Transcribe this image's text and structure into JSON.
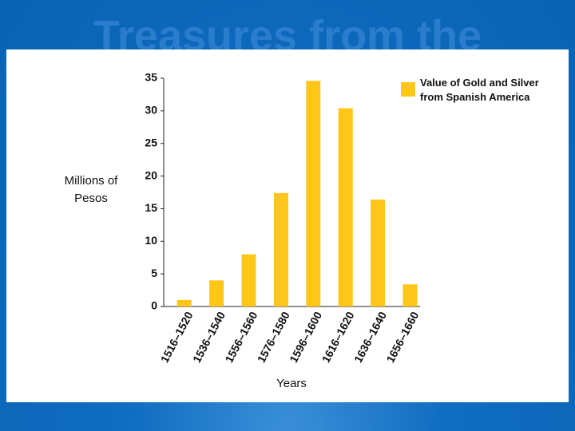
{
  "title": "Treasures from the",
  "chart_data": {
    "type": "bar",
    "categories": [
      "1516–1520",
      "1536–1540",
      "1556–1560",
      "1576–1580",
      "1596–1600",
      "1616–1620",
      "1636–1640",
      "1656–1660"
    ],
    "series": [
      {
        "name": "Value of Gold and Silver from Spanish America",
        "color": "#ffc61a",
        "values": [
          1,
          4,
          8,
          17.4,
          34.6,
          30.4,
          16.4,
          3.4
        ]
      }
    ],
    "ylim": [
      0,
      35
    ],
    "yticks": [
      0,
      5,
      10,
      15,
      20,
      25,
      30,
      35
    ],
    "y_label": "Millions of Pesos",
    "x_label": "Years",
    "grid": false
  }
}
